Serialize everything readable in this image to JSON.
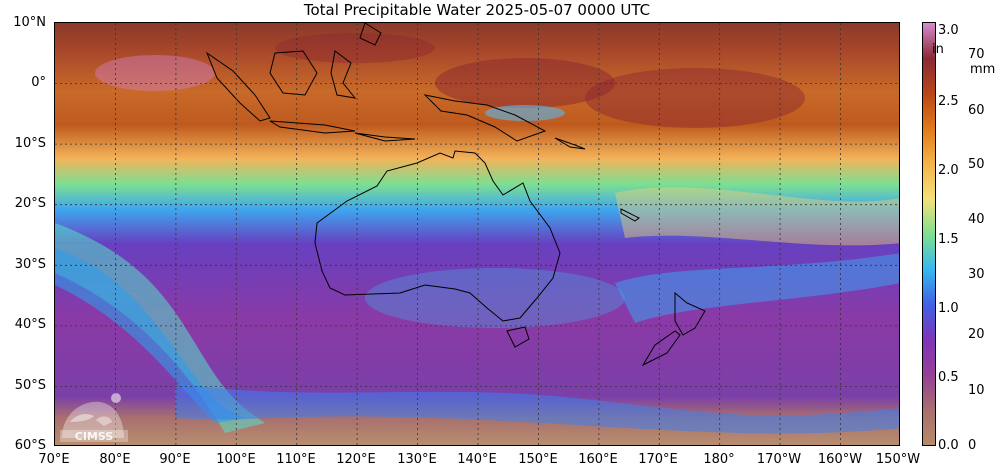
{
  "title": "Total Precipitable Water  2025-05-07 0000 UTC",
  "lat_labels": [
    "10°N",
    "0°",
    "10°S",
    "20°S",
    "30°S",
    "40°S",
    "50°S",
    "60°S"
  ],
  "lon_labels": [
    "70°E",
    "80°E",
    "90°E",
    "100°E",
    "110°E",
    "120°E",
    "130°E",
    "140°E",
    "150°E",
    "160°E",
    "170°E",
    "180°",
    "170°W",
    "160°W",
    "150°W"
  ],
  "colorbar": {
    "in_unit": "in",
    "mm_unit": "mm",
    "in_ticks": [
      "3.0",
      "2.5",
      "2.0",
      "1.5",
      "1.0",
      "0.5",
      "0.0"
    ],
    "mm_ticks": [
      "70",
      "60",
      "50",
      "40",
      "30",
      "20",
      "10",
      "0"
    ],
    "colors": [
      "#d78bd0",
      "#8a2a35",
      "#b84518",
      "#e07a1a",
      "#f3b448",
      "#f5e07a",
      "#7fe08f",
      "#36b8ef",
      "#3f62e6",
      "#7f35b8",
      "#964097",
      "#a86f6e",
      "#b68a6a"
    ]
  },
  "logo": {
    "text": "CIMSS",
    "icon": "cimss-logo-icon"
  }
}
